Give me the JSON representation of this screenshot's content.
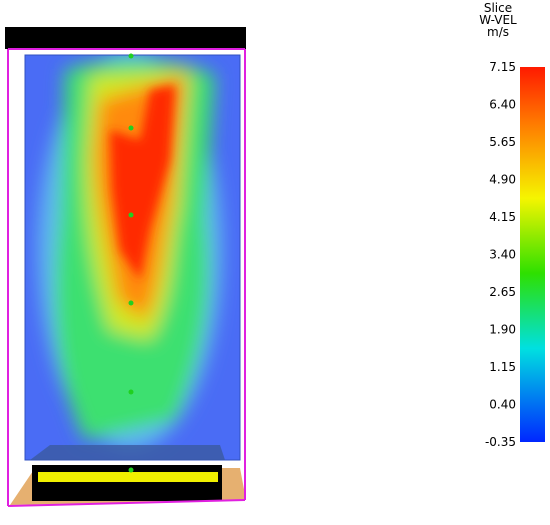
{
  "colorbar": {
    "title": [
      "Slice",
      "W-VEL",
      "m/s"
    ],
    "ticks": [
      "7.15",
      "6.40",
      "5.65",
      "4.90",
      "4.15",
      "3.40",
      "2.65",
      "1.90",
      "1.15",
      "0.40",
      "-0.35"
    ]
  }
}
